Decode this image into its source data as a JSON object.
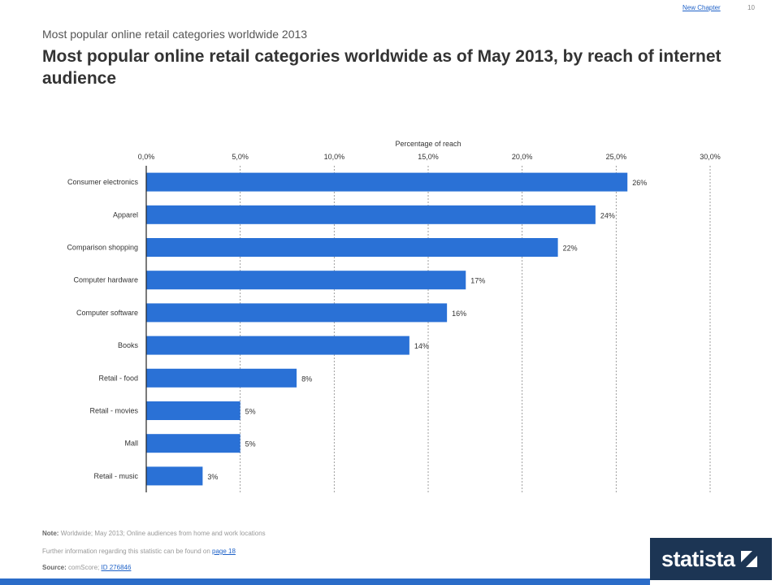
{
  "header": {
    "link": "New Chapter",
    "page_number": "10",
    "subtitle": "Most popular online retail categories worldwide 2013",
    "title": "Most popular online retail categories worldwide as of May 2013, by reach of internet audience"
  },
  "chart_data": {
    "type": "bar",
    "orientation": "horizontal",
    "xlabel": "Percentage of reach",
    "xlim": [
      0,
      30
    ],
    "xticks": [
      "0,0%",
      "5,0%",
      "10,0%",
      "15,0%",
      "20,0%",
      "25,0%",
      "30,0%"
    ],
    "grid": true,
    "bar_color": "#2a71d6",
    "categories": [
      "Consumer electronics",
      "Apparel",
      "Comparison shopping",
      "Computer hardware",
      "Computer software",
      "Books",
      "Retail - food",
      "Retail - movies",
      "Mall",
      "Retail - music"
    ],
    "values": [
      25.6,
      23.9,
      21.9,
      17,
      16,
      14,
      8,
      5,
      5,
      3
    ],
    "value_labels": [
      "26%",
      "24%",
      "22%",
      "17%",
      "16%",
      "14%",
      "8%",
      "5%",
      "5%",
      "3%"
    ]
  },
  "footer": {
    "note_label": "Note:",
    "note_text": "Worldwide; May 2013; Online audiences from home and work locations",
    "further_text": "Further information regarding this statistic can be found on",
    "further_link": "page 18",
    "source_label": "Source:",
    "source_text": "comScore;",
    "source_link": "ID 276846"
  },
  "logo": {
    "text": "statista"
  }
}
